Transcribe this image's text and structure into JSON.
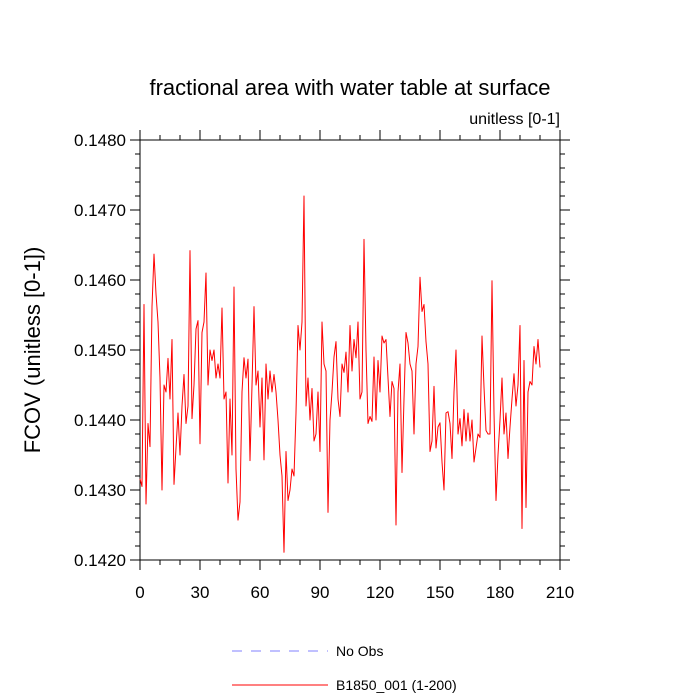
{
  "chart_data": {
    "type": "line",
    "title": "fractional area with water table at surface",
    "units_label": "unitless [0-1]",
    "ylabel": "FCOV  (unitless [0-1])",
    "xlabel": "",
    "xlim": [
      0,
      210
    ],
    "ylim": [
      0.142,
      0.148
    ],
    "xticks": [
      0,
      30,
      60,
      90,
      120,
      150,
      180,
      210
    ],
    "xtick_labels": [
      "0",
      "30",
      "60",
      "90",
      "120",
      "150",
      "180",
      "210"
    ],
    "yticks": [
      0.142,
      0.143,
      0.144,
      0.145,
      0.146,
      0.147,
      0.148
    ],
    "ytick_labels": [
      "0.1420",
      "0.1430",
      "0.1440",
      "0.1450",
      "0.1460",
      "0.1470",
      "0.1480"
    ],
    "grid": false,
    "legend": [
      {
        "name": "No Obs",
        "color": "#8080ff",
        "style": "dashed"
      },
      {
        "name": "B1850_001 (1-200)",
        "color": "#ff0000",
        "style": "solid"
      }
    ],
    "series": [
      {
        "name": "B1850_001 (1-200)",
        "color": "#ff0000",
        "x_start": 0,
        "x_step": 1,
        "values": [
          0.14316,
          0.14305,
          0.14565,
          0.1428,
          0.14395,
          0.14362,
          0.14562,
          0.14637,
          0.1458,
          0.1454,
          0.1446,
          0.143,
          0.1445,
          0.1444,
          0.14488,
          0.1443,
          0.14515,
          0.14308,
          0.1436,
          0.1441,
          0.1435,
          0.1442,
          0.14465,
          0.14395,
          0.1442,
          0.14642,
          0.14402,
          0.1445,
          0.1453,
          0.14542,
          0.14366,
          0.14525,
          0.1454,
          0.1461,
          0.1445,
          0.145,
          0.14485,
          0.145,
          0.1446,
          0.1448,
          0.1446,
          0.1456,
          0.1443,
          0.1444,
          0.1431,
          0.1443,
          0.1435,
          0.1459,
          0.1433,
          0.14257,
          0.14283,
          0.1444,
          0.14489,
          0.1446,
          0.14487,
          0.14342,
          0.14449,
          0.14562,
          0.1445,
          0.1447,
          0.1439,
          0.1446,
          0.14343,
          0.1448,
          0.1443,
          0.1447,
          0.1444,
          0.14465,
          0.1444,
          0.144,
          0.1435,
          0.1432,
          0.14211,
          0.14355,
          0.14285,
          0.143,
          0.1433,
          0.1432,
          0.1441,
          0.14535,
          0.145,
          0.1454,
          0.1472,
          0.1442,
          0.1446,
          0.144,
          0.14445,
          0.1437,
          0.1438,
          0.1444,
          0.14355,
          0.1454,
          0.1448,
          0.1447,
          0.14268,
          0.144,
          0.1444,
          0.1449,
          0.14512,
          0.1443,
          0.14405,
          0.1448,
          0.14468,
          0.14497,
          0.1444,
          0.14535,
          0.1447,
          0.14515,
          0.14489,
          0.1454,
          0.1443,
          0.1444,
          0.14658,
          0.145,
          0.14395,
          0.14405,
          0.14398,
          0.1449,
          0.144,
          0.14485,
          0.1444,
          0.1452,
          0.1451,
          0.14515,
          0.1446,
          0.14405,
          0.14455,
          0.14445,
          0.1425,
          0.1444,
          0.1448,
          0.14325,
          0.1443,
          0.14525,
          0.1451,
          0.1448,
          0.1447,
          0.1438,
          0.1448,
          0.14505,
          0.14604,
          0.14555,
          0.14565,
          0.14512,
          0.1448,
          0.14355,
          0.1437,
          0.14448,
          0.1436,
          0.1439,
          0.14396,
          0.1434,
          0.143,
          0.1441,
          0.14412,
          0.14395,
          0.14345,
          0.1444,
          0.145,
          0.1438,
          0.14402,
          0.14363,
          0.14415,
          0.1437,
          0.1441,
          0.1437,
          0.144,
          0.1434,
          0.1436,
          0.1438,
          0.14375,
          0.1452,
          0.14447,
          0.14385,
          0.1438,
          0.1438,
          0.14599,
          0.1441,
          0.14285,
          0.1435,
          0.144,
          0.1446,
          0.1438,
          0.1441,
          0.14345,
          0.1439,
          0.1443,
          0.14466,
          0.1442,
          0.1445,
          0.14535,
          0.14245,
          0.14485,
          0.14275,
          0.1444,
          0.14455,
          0.1445,
          0.14505,
          0.1448,
          0.14515,
          0.14475
        ]
      }
    ]
  }
}
